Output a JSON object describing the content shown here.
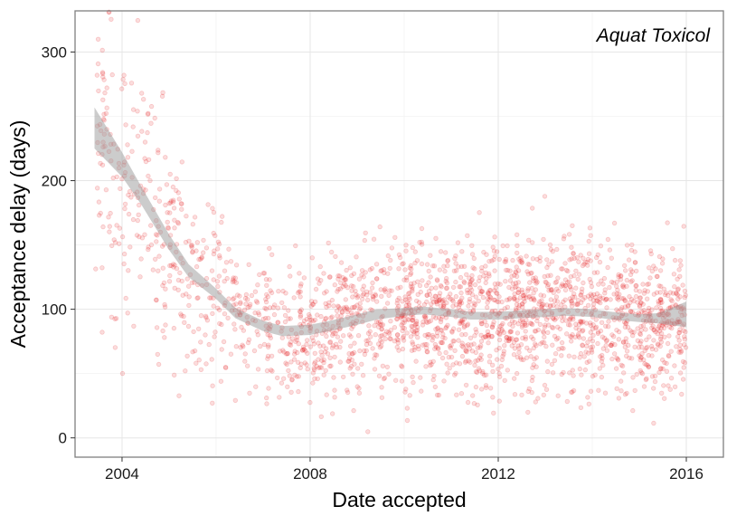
{
  "chart_data": {
    "type": "scatter",
    "title": "",
    "annotation": "Aquat Toxicol",
    "xlabel": "Date accepted",
    "ylabel": "Acceptance delay (days)",
    "xlim": [
      "2003-01-01",
      "2016-10-15"
    ],
    "ylim": [
      -15,
      332
    ],
    "x_ticks": [
      {
        "date": "2004-01-01",
        "label": "2004"
      },
      {
        "date": "2008-01-01",
        "label": "2008"
      },
      {
        "date": "2012-01-01",
        "label": "2012"
      },
      {
        "date": "2016-01-01",
        "label": "2016"
      }
    ],
    "y_ticks": [
      0,
      100,
      200,
      300
    ],
    "grid": true,
    "point_color": "#e41a1c",
    "point_opacity": 0.15,
    "smooth_band_color": "#999999",
    "scatter_density": [
      {
        "period": "2003-2005",
        "approx_count": 180,
        "median_delay_days": 160
      },
      {
        "period": "2005-2008",
        "approx_count": 360,
        "median_delay_days": 70
      },
      {
        "period": "2008-2010",
        "approx_count": 360,
        "median_delay_days": 80
      },
      {
        "period": "2010-2016",
        "approx_count": 1400,
        "median_delay_days": 90
      }
    ],
    "smooth_trend": [
      {
        "date": "2003-06-01",
        "y": 240,
        "lower": 225,
        "upper": 257
      },
      {
        "date": "2004-01-01",
        "y": 212,
        "lower": 203,
        "upper": 222
      },
      {
        "date": "2004-06-01",
        "y": 188,
        "lower": 181,
        "upper": 195
      },
      {
        "date": "2005-01-01",
        "y": 152,
        "lower": 146,
        "upper": 158
      },
      {
        "date": "2005-06-01",
        "y": 130,
        "lower": 125,
        "upper": 135
      },
      {
        "date": "2006-01-01",
        "y": 112,
        "lower": 108,
        "upper": 116
      },
      {
        "date": "2006-06-01",
        "y": 97,
        "lower": 93,
        "upper": 101
      },
      {
        "date": "2007-01-01",
        "y": 87,
        "lower": 83,
        "upper": 91
      },
      {
        "date": "2007-06-01",
        "y": 83,
        "lower": 79,
        "upper": 87
      },
      {
        "date": "2008-01-01",
        "y": 84,
        "lower": 80,
        "upper": 88
      },
      {
        "date": "2008-06-01",
        "y": 87,
        "lower": 83,
        "upper": 91
      },
      {
        "date": "2009-01-01",
        "y": 92,
        "lower": 88,
        "upper": 96
      },
      {
        "date": "2009-06-01",
        "y": 96,
        "lower": 92,
        "upper": 100
      },
      {
        "date": "2010-01-01",
        "y": 98,
        "lower": 95,
        "upper": 101
      },
      {
        "date": "2010-06-01",
        "y": 99,
        "lower": 96,
        "upper": 102
      },
      {
        "date": "2011-01-01",
        "y": 97,
        "lower": 94,
        "upper": 100
      },
      {
        "date": "2011-06-01",
        "y": 95,
        "lower": 92,
        "upper": 98
      },
      {
        "date": "2012-01-01",
        "y": 95,
        "lower": 92,
        "upper": 98
      },
      {
        "date": "2012-06-01",
        "y": 96,
        "lower": 93,
        "upper": 99
      },
      {
        "date": "2013-01-01",
        "y": 97,
        "lower": 94,
        "upper": 100
      },
      {
        "date": "2013-06-01",
        "y": 98,
        "lower": 95,
        "upper": 101
      },
      {
        "date": "2014-01-01",
        "y": 97,
        "lower": 94,
        "upper": 100
      },
      {
        "date": "2014-06-01",
        "y": 95,
        "lower": 92,
        "upper": 98
      },
      {
        "date": "2015-01-01",
        "y": 93,
        "lower": 90,
        "upper": 96
      },
      {
        "date": "2015-06-01",
        "y": 93,
        "lower": 89,
        "upper": 97
      },
      {
        "date": "2016-01-01",
        "y": 96,
        "lower": 86,
        "upper": 106
      }
    ]
  }
}
